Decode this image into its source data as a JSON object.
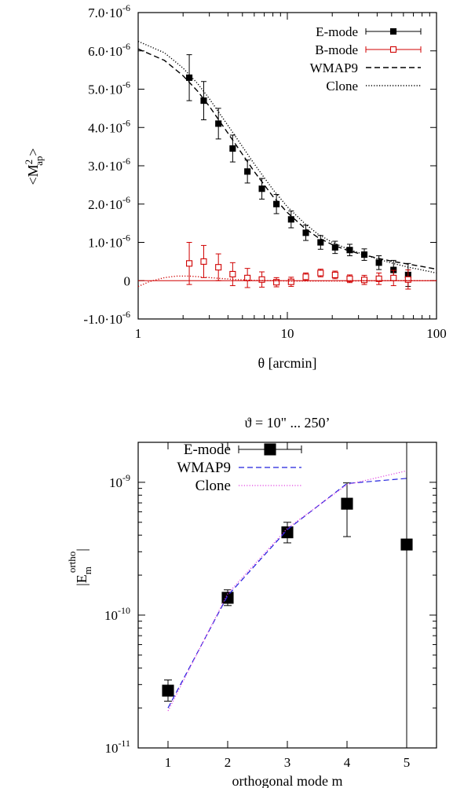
{
  "chart_data": [
    {
      "type": "scatter",
      "title": "",
      "xlabel": "θ [arcmin]",
      "ylabel": "<M²ap>",
      "ylabel_main": "<M",
      "ylabel_sup": "2",
      "ylabel_sub": "ap",
      "ylabel_end": ">",
      "xscale": "log",
      "xlim": [
        1,
        100
      ],
      "ylim": [
        -1e-06,
        7e-06
      ],
      "x_ticks": [
        1,
        10,
        100
      ],
      "x_tick_labels": [
        "1",
        "10",
        "100"
      ],
      "y_ticks": [
        -1e-06,
        0,
        1e-06,
        2e-06,
        3e-06,
        4e-06,
        5e-06,
        6e-06,
        7e-06
      ],
      "y_tick_labels": [
        {
          "mant": "-1.0·10",
          "exp": "-6"
        },
        {
          "mant": "0",
          "exp": ""
        },
        {
          "mant": "1.0·10",
          "exp": "-6"
        },
        {
          "mant": "2.0·10",
          "exp": "-6"
        },
        {
          "mant": "3.0·10",
          "exp": "-6"
        },
        {
          "mant": "4.0·10",
          "exp": "-6"
        },
        {
          "mant": "5.0·10",
          "exp": "-6"
        },
        {
          "mant": "6.0·10",
          "exp": "-6"
        },
        {
          "mant": "7.0·10",
          "exp": "-6"
        }
      ],
      "legend_position": "top-right",
      "legend": [
        "E-mode",
        "B-mode",
        "WMAP9",
        "Clone"
      ],
      "series": [
        {
          "name": "E-mode",
          "style": "points",
          "color": "#000000",
          "marker": "filled-square",
          "x": [
            2.2,
            2.75,
            3.45,
            4.3,
            5.4,
            6.75,
            8.45,
            10.6,
            13.3,
            16.7,
            20.9,
            26.2,
            32.8,
            41.1,
            51.5,
            64.5
          ],
          "y": [
            5.3e-06,
            4.7e-06,
            4.1e-06,
            3.45e-06,
            2.85e-06,
            2.4e-06,
            2e-06,
            1.6e-06,
            1.25e-06,
            1e-06,
            8.7e-07,
            8e-07,
            6.8e-07,
            4.7e-07,
            2.8e-07,
            1.5e-07
          ],
          "err": [
            6e-07,
            5e-07,
            4e-07,
            3.5e-07,
            3e-07,
            2.7e-07,
            2.5e-07,
            2.2e-07,
            2e-07,
            1.8e-07,
            1.6e-07,
            1.5e-07,
            1.5e-07,
            1.8e-07,
            2.5e-07,
            3e-07
          ]
        },
        {
          "name": "B-mode",
          "style": "points",
          "color": "#d00000",
          "marker": "open-square",
          "x": [
            2.2,
            2.75,
            3.45,
            4.3,
            5.4,
            6.75,
            8.45,
            10.6,
            13.3,
            16.7,
            20.9,
            26.2,
            32.8,
            41.1,
            51.5,
            64.5
          ],
          "y": [
            4.5e-07,
            5e-07,
            3.5e-07,
            1.7e-07,
            7e-08,
            3e-08,
            -4e-08,
            -3e-08,
            1e-07,
            2e-07,
            1.5e-07,
            5e-08,
            2e-08,
            5e-08,
            7e-08,
            3e-08
          ],
          "err": [
            5.5e-07,
            4.2e-07,
            3.5e-07,
            3e-07,
            2.5e-07,
            2e-07,
            1.2e-07,
            1.2e-07,
            1e-07,
            1e-07,
            1e-07,
            1e-07,
            1.2e-07,
            1.5e-07,
            2e-07,
            2.5e-07
          ]
        },
        {
          "name": "WMAP9",
          "style": "dashed",
          "color": "#000000",
          "x": [
            1,
            1.5,
            2,
            2.5,
            3,
            4,
            5,
            6,
            8,
            10,
            13,
            16,
            20,
            25,
            30,
            40,
            50,
            65,
            80,
            100
          ],
          "y": [
            6.05e-06,
            5.75e-06,
            5.35e-06,
            4.95e-06,
            4.55e-06,
            3.85e-06,
            3.3e-06,
            2.85e-06,
            2.2e-06,
            1.78e-06,
            1.38e-06,
            1.13e-06,
            9.4e-07,
            8e-07,
            7.1e-07,
            5.9e-07,
            5.1e-07,
            4.3e-07,
            3.7e-07,
            3e-07
          ]
        },
        {
          "name": "Clone",
          "style": "dotted",
          "color": "#000000",
          "x": [
            1,
            1.5,
            2,
            2.5,
            3,
            4,
            5,
            6,
            8,
            10,
            13,
            16,
            20,
            25,
            30,
            40,
            50,
            65,
            80,
            100
          ],
          "y": [
            6.25e-06,
            5.95e-06,
            5.55e-06,
            5.15e-06,
            4.75e-06,
            4.05e-06,
            3.5e-06,
            3.05e-06,
            2.38e-06,
            1.93e-06,
            1.5e-06,
            1.22e-06,
            1e-06,
            8.4e-07,
            7.3e-07,
            5.7e-07,
            4.6e-07,
            3.5e-07,
            2.8e-07,
            2e-07
          ]
        },
        {
          "name": "",
          "style": "dotted",
          "color": "#d00000",
          "x": [
            1,
            1.2,
            1.5,
            1.8,
            2.2,
            2.8,
            3.5,
            4.5,
            6,
            8,
            11,
            15,
            20,
            30,
            50,
            100
          ],
          "y": [
            -1.5e-07,
            -2e-08,
            8e-08,
            1.2e-07,
            1.2e-07,
            9e-08,
            6e-08,
            3e-08,
            1e-08,
            0.0,
            -1e-08,
            -1e-08,
            -1e-08,
            -5e-09,
            0.0,
            0.0
          ]
        },
        {
          "name": "",
          "style": "solid",
          "color": "#d00000",
          "x": [
            1,
            100
          ],
          "y": [
            0,
            0
          ]
        }
      ]
    },
    {
      "type": "scatter",
      "title": "ϑ = 10\" ... 250’",
      "xlabel": "orthogonal mode m",
      "ylabel": "|E_m^ortho|",
      "ylabel_main": "|E",
      "ylabel_sub": "m",
      "ylabel_sup": "ortho",
      "ylabel_end": "|",
      "yscale": "log",
      "xlim": [
        0.5,
        5.5
      ],
      "ylim": [
        1e-11,
        2e-09
      ],
      "x_ticks": [
        1,
        2,
        3,
        4,
        5
      ],
      "x_tick_labels": [
        "1",
        "2",
        "3",
        "4",
        "5"
      ],
      "y_ticks": [
        1e-11,
        1e-10,
        1e-09
      ],
      "y_tick_labels": [
        {
          "mant": "10",
          "exp": "-11"
        },
        {
          "mant": "10",
          "exp": "-10"
        },
        {
          "mant": "10",
          "exp": "-9"
        }
      ],
      "legend_position": "top-left",
      "legend": [
        "E-mode",
        "WMAP9",
        "Clone"
      ],
      "series": [
        {
          "name": "E-mode",
          "style": "points",
          "color": "#000000",
          "marker": "filled-square",
          "x": [
            1,
            2,
            3,
            4,
            5
          ],
          "y": [
            2.7e-11,
            1.35e-10,
            4.2e-10,
            6.9e-10,
            3.4e-10
          ],
          "ylo": [
            2.25e-11,
            1.18e-10,
            3.5e-10,
            3.9e-10,
            1e-11
          ],
          "yhi": [
            3.25e-11,
            1.55e-10,
            5e-10,
            9.9e-10,
            2e-09
          ]
        },
        {
          "name": "WMAP9",
          "style": "dashed",
          "color": "#2222dd",
          "x": [
            1,
            2,
            3,
            4,
            5
          ],
          "y": [
            2e-11,
            1.4e-10,
            4.4e-10,
            9.8e-10,
            1.07e-09
          ]
        },
        {
          "name": "Clone",
          "style": "dotted",
          "color": "#e040e0",
          "x": [
            1,
            2,
            3,
            4,
            5
          ],
          "y": [
            1.9e-11,
            1.45e-10,
            4.5e-10,
            9.6e-10,
            1.22e-09
          ]
        }
      ]
    }
  ]
}
